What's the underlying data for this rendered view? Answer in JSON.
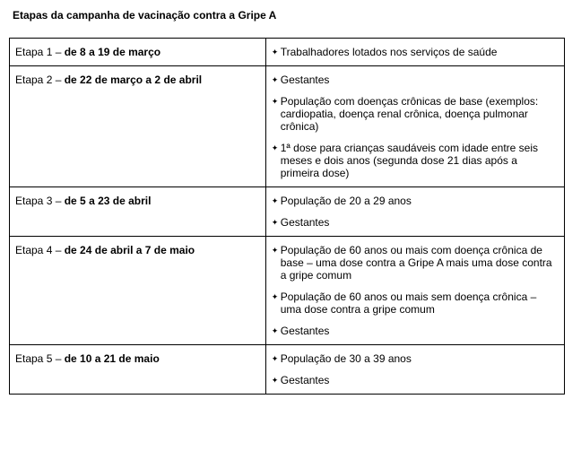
{
  "title": "Etapas da campanha de vacinação contra a Gripe A",
  "stage_label": "Etapa",
  "sep": " – ",
  "rows": [
    {
      "num": "1",
      "dates": "de 8 a 19 de março",
      "items": [
        "Trabalhadores lotados nos serviços de saúde"
      ]
    },
    {
      "num": "2",
      "dates": "de 22 de março a 2 de abril",
      "items": [
        "Gestantes",
        "População com doenças crônicas de base (exemplos: cardiopatia, doença renal crônica, doença pulmonar crônica)",
        "1ª dose para crianças saudáveis com idade entre seis meses e dois anos (segunda dose 21 dias após a primeira dose)"
      ]
    },
    {
      "num": "3",
      "dates": "de 5 a 23 de abril",
      "items": [
        "População de 20 a 29 anos",
        "Gestantes"
      ]
    },
    {
      "num": "4",
      "dates": "de 24 de abril a 7 de maio",
      "items": [
        "População de 60 anos ou mais com doença crônica de base – uma dose contra a Gripe A mais uma dose contra a gripe comum",
        "População de 60 anos ou mais sem doença crônica – uma dose contra a gripe comum",
        "Gestantes"
      ]
    },
    {
      "num": "5",
      "dates": "de 10 a 21 de maio",
      "items": [
        "População de 30 a 39 anos",
        "Gestantes"
      ]
    }
  ]
}
